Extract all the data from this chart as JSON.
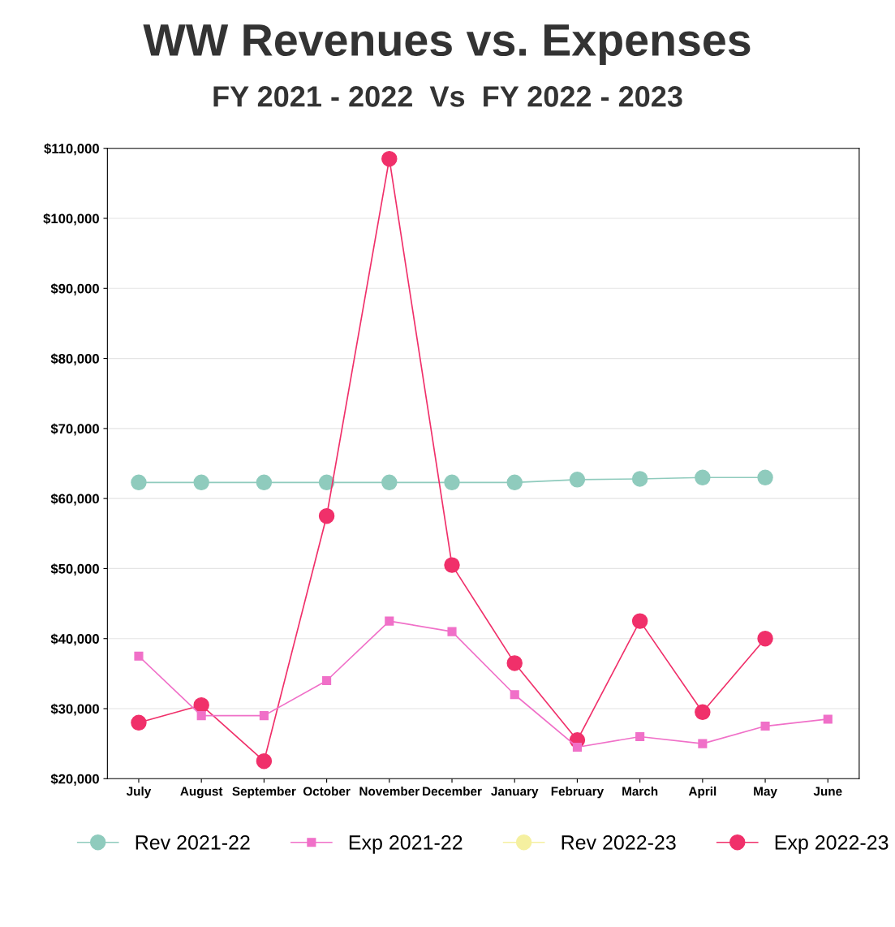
{
  "chart_data": {
    "type": "line",
    "title": "WW Revenues vs. Expenses",
    "subtitle": "FY 2021 - 2022  Vs  FY 2022 - 2023",
    "categories": [
      "July",
      "August",
      "September",
      "October",
      "November",
      "December",
      "January",
      "February",
      "March",
      "April",
      "May",
      "June"
    ],
    "series": [
      {
        "name": "Rev 2021-22",
        "color": "#8fcbbd",
        "marker": "circle",
        "values": [
          62300,
          62300,
          62300,
          62300,
          62300,
          62300,
          62300,
          62700,
          62800,
          63000,
          63000,
          null
        ]
      },
      {
        "name": "Exp 2021-22",
        "color": "#f070c8",
        "marker": "square",
        "values": [
          37500,
          29000,
          29000,
          34000,
          42500,
          41000,
          32000,
          24500,
          26000,
          25000,
          27500,
          28500
        ]
      },
      {
        "name": "Rev 2022-23",
        "color": "#f5f0a0",
        "marker": "circle",
        "values": [
          null,
          null,
          null,
          null,
          null,
          null,
          null,
          null,
          null,
          null,
          null,
          null
        ]
      },
      {
        "name": "Exp 2022-23",
        "color": "#f0306a",
        "marker": "circle",
        "values": [
          28000,
          30500,
          22500,
          57500,
          108500,
          50500,
          36500,
          25500,
          42500,
          29500,
          40000,
          null
        ]
      }
    ],
    "ylim": [
      20000,
      110000
    ],
    "yticks": [
      {
        "value": 20000,
        "label": "$20,000"
      },
      {
        "value": 30000,
        "label": "$30,000"
      },
      {
        "value": 40000,
        "label": "$40,000"
      },
      {
        "value": 50000,
        "label": "$50,000"
      },
      {
        "value": 60000,
        "label": "$60,000"
      },
      {
        "value": 70000,
        "label": "$70,000"
      },
      {
        "value": 80000,
        "label": "$80,000"
      },
      {
        "value": 90000,
        "label": "$90,000"
      },
      {
        "value": 100000,
        "label": "$100,000"
      },
      {
        "value": 110000,
        "label": "$110,000"
      }
    ],
    "grid": "y",
    "legend": "bottom"
  }
}
